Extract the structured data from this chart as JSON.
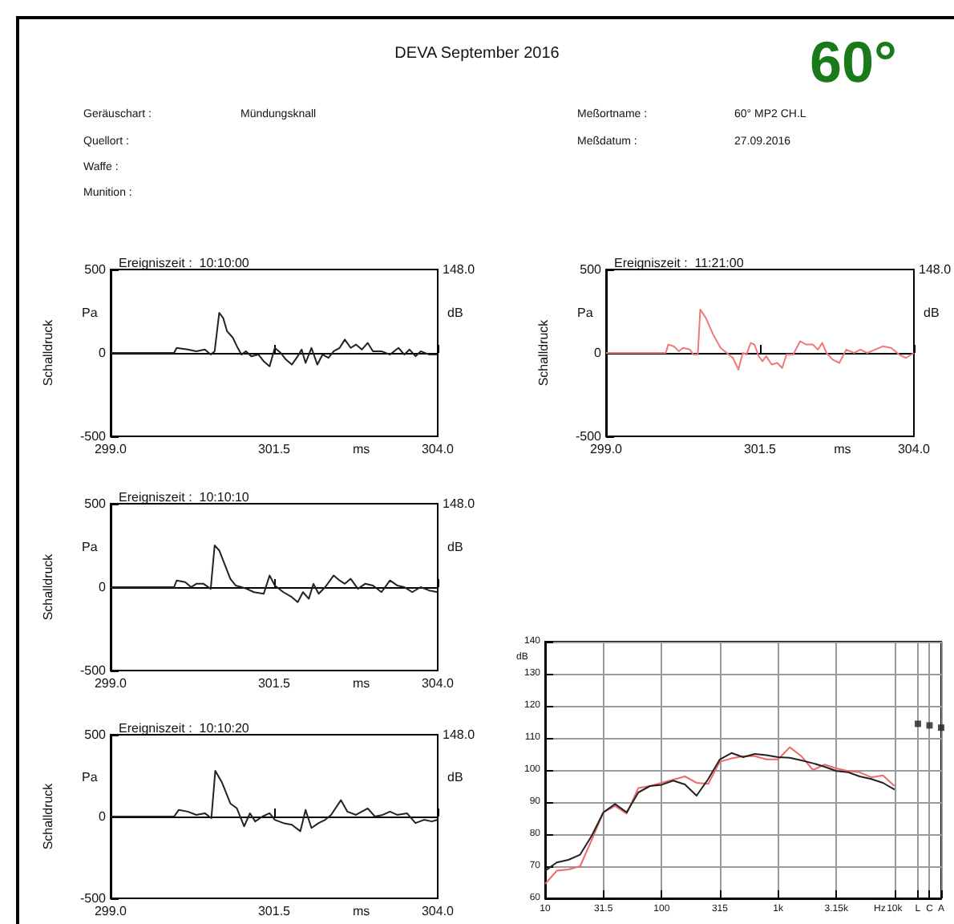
{
  "chart_data": [
    {
      "type": "other",
      "title": "DEVA September 2016",
      "annotations": [
        "60°",
        "Geräuschart :",
        "Mündungsknall",
        "Quellort :",
        "Waffe :",
        "Munition :",
        "Meßortname :",
        "60° MP2 CH.L",
        "Meßdatum :",
        "27.09.2016"
      ]
    },
    {
      "type": "line",
      "title": "Ereigniszeit :  10:10:00",
      "xlabel": "ms",
      "ylabel": "Schalldruck",
      "annotations": [
        "Pa",
        "dB",
        "148.0"
      ],
      "marker": "none",
      "x": [
        299.0,
        299.97,
        300.01,
        300.18,
        300.31,
        300.44,
        300.53,
        300.59,
        300.66,
        300.72,
        300.78,
        300.87,
        300.93,
        301.0,
        301.07,
        301.15,
        301.26,
        301.34,
        301.43,
        301.51,
        301.6,
        301.68,
        301.77,
        301.86,
        301.92,
        301.98,
        302.07,
        302.16,
        302.24,
        302.33,
        302.41,
        302.5,
        302.58,
        302.67,
        302.75,
        302.84,
        302.93,
        303.01,
        303.14,
        303.27,
        303.4,
        303.49,
        303.57,
        303.66,
        303.74,
        303.87,
        304.0
      ],
      "series": [
        {
          "color": "#222222",
          "values": [
            0,
            0,
            30,
            20,
            10,
            20,
            -10,
            10,
            240,
            210,
            130,
            90,
            40,
            -10,
            10,
            -20,
            -10,
            -50,
            -80,
            30,
            0,
            -40,
            -70,
            -20,
            20,
            -60,
            30,
            -70,
            -10,
            -30,
            10,
            30,
            80,
            30,
            50,
            20,
            60,
            10,
            10,
            -10,
            30,
            -10,
            20,
            -20,
            10,
            -10,
            -10
          ]
        }
      ],
      "xlim": [
        299,
        304
      ],
      "xticks": [
        {
          "value": 299,
          "label": "299.0"
        },
        {
          "value": 301.5,
          "label": "301.5"
        },
        {
          "value": 304,
          "label": "304.0"
        }
      ],
      "ylim": [
        -500,
        500
      ],
      "yticks": [
        -500,
        0,
        500
      ]
    },
    {
      "type": "line",
      "title": "Ereigniszeit :  11:21:00",
      "xlabel": "ms",
      "ylabel": "Schalldruck",
      "annotations": [
        "Pa",
        "dB",
        "148.0"
      ],
      "marker": "none",
      "x": [
        299.0,
        299.97,
        300.01,
        300.1,
        300.18,
        300.25,
        300.36,
        300.42,
        300.49,
        300.53,
        300.62,
        300.74,
        300.86,
        300.96,
        301.06,
        301.15,
        301.22,
        301.28,
        301.35,
        301.41,
        301.48,
        301.54,
        301.6,
        301.69,
        301.78,
        301.86,
        301.93,
        302.04,
        302.15,
        302.25,
        302.36,
        302.44,
        302.51,
        302.58,
        302.68,
        302.79,
        302.9,
        303.03,
        303.13,
        303.24,
        303.37,
        303.5,
        303.63,
        303.76,
        303.87,
        304.0
      ],
      "series": [
        {
          "color": "#f07878",
          "values": [
            0,
            0,
            50,
            40,
            10,
            30,
            20,
            -10,
            -10,
            260,
            210,
            110,
            30,
            0,
            -30,
            -100,
            0,
            -10,
            60,
            50,
            -20,
            -50,
            -20,
            -70,
            -60,
            -90,
            -10,
            -10,
            70,
            50,
            50,
            20,
            60,
            0,
            -40,
            -60,
            20,
            0,
            20,
            0,
            20,
            40,
            30,
            -10,
            -30,
            0
          ]
        }
      ],
      "xlim": [
        299,
        304
      ],
      "xticks": [
        {
          "value": 299,
          "label": "299.0"
        },
        {
          "value": 301.5,
          "label": "301.5"
        },
        {
          "value": 304,
          "label": "304.0"
        }
      ],
      "ylim": [
        -500,
        500
      ],
      "yticks": [
        -500,
        0,
        500
      ]
    },
    {
      "type": "line",
      "title": "Ereigniszeit :  10:10:10",
      "xlabel": "ms",
      "ylabel": "Schalldruck",
      "annotations": [
        "Pa",
        "dB",
        "148.0"
      ],
      "marker": "none",
      "x": [
        299.0,
        299.97,
        300.01,
        300.14,
        300.23,
        300.31,
        300.42,
        300.53,
        300.59,
        300.66,
        300.74,
        300.83,
        300.91,
        301.0,
        301.08,
        301.19,
        301.34,
        301.43,
        301.51,
        301.64,
        301.77,
        301.86,
        301.94,
        302.03,
        302.1,
        302.18,
        302.28,
        302.41,
        302.5,
        302.58,
        302.67,
        302.78,
        302.89,
        303.01,
        303.14,
        303.27,
        303.38,
        303.49,
        303.61,
        303.74,
        303.87,
        304.0
      ],
      "series": [
        {
          "color": "#222222",
          "values": [
            0,
            0,
            40,
            30,
            0,
            20,
            20,
            -10,
            250,
            220,
            140,
            50,
            10,
            0,
            -10,
            -30,
            -40,
            70,
            10,
            -30,
            -60,
            -90,
            -30,
            -70,
            20,
            -40,
            0,
            70,
            40,
            20,
            50,
            -10,
            20,
            10,
            -30,
            40,
            10,
            0,
            -30,
            0,
            -20,
            -30
          ]
        }
      ],
      "xlim": [
        299,
        304
      ],
      "xticks": [
        {
          "value": 299,
          "label": "299.0"
        },
        {
          "value": 301.5,
          "label": "301.5"
        },
        {
          "value": 304,
          "label": "304.0"
        }
      ],
      "ylim": [
        -500,
        500
      ],
      "yticks": [
        -500,
        0,
        500
      ]
    },
    {
      "type": "line",
      "title": "Ereigniszeit :  10:10:20",
      "xlabel": "ms",
      "ylabel": "Schalldruck",
      "annotations": [
        "Pa",
        "dB",
        "148.0"
      ],
      "marker": "none",
      "x": [
        299.0,
        299.97,
        300.04,
        300.18,
        300.31,
        300.44,
        300.54,
        300.6,
        300.7,
        300.83,
        300.93,
        301.04,
        301.13,
        301.21,
        301.32,
        301.43,
        301.51,
        301.64,
        301.77,
        301.9,
        301.98,
        302.07,
        302.18,
        302.28,
        302.37,
        302.52,
        302.62,
        302.75,
        302.93,
        303.04,
        303.16,
        303.27,
        303.38,
        303.53,
        303.66,
        303.79,
        303.91,
        304.0
      ],
      "series": [
        {
          "color": "#222222",
          "values": [
            0,
            0,
            40,
            30,
            10,
            20,
            -10,
            280,
            210,
            80,
            50,
            -60,
            20,
            -30,
            0,
            20,
            -20,
            -40,
            -50,
            -90,
            40,
            -70,
            -40,
            -20,
            10,
            100,
            30,
            10,
            50,
            0,
            10,
            30,
            10,
            20,
            -40,
            -20,
            -30,
            -20
          ]
        }
      ],
      "xlim": [
        299,
        304
      ],
      "xticks": [
        {
          "value": 299,
          "label": "299.0"
        },
        {
          "value": 301.5,
          "label": "301.5"
        },
        {
          "value": 304,
          "label": "304.0"
        }
      ],
      "ylim": [
        -500,
        500
      ],
      "yticks": [
        -500,
        0,
        500
      ]
    },
    {
      "type": "line",
      "xlabel": "Hz",
      "ylabel": "dB",
      "marker": "none",
      "grid": true,
      "categories": [
        "10",
        null,
        null,
        null,
        null,
        "31.5",
        null,
        null,
        null,
        null,
        "100",
        null,
        null,
        null,
        null,
        "315",
        null,
        null,
        null,
        null,
        "1k",
        null,
        null,
        null,
        null,
        "3.15k",
        null,
        null,
        null,
        null,
        "10k",
        null,
        "L",
        "C",
        "A"
      ],
      "series": [
        {
          "color": "#f06868",
          "values": [
            64.5,
            68.6,
            69,
            70,
            78.2,
            86.8,
            88.8,
            86.4,
            94.4,
            95,
            96,
            97,
            98,
            96,
            95.7,
            102.6,
            103.6,
            104.3,
            104.3,
            103.3,
            103.3,
            107.1,
            104.3,
            100,
            101.7,
            100.5,
            99.7,
            99.3,
            97.7,
            98.3,
            95,
            null,
            null,
            null,
            null
          ]
        },
        {
          "color": "#222222",
          "values": [
            68.6,
            71.2,
            72,
            73.6,
            79.5,
            86.8,
            89.4,
            86.8,
            93,
            95,
            95.4,
            96.7,
            95.5,
            92,
            97.2,
            103.3,
            105.3,
            104,
            105,
            104.6,
            104,
            103.8,
            103,
            102.1,
            101,
            99.7,
            99.3,
            98,
            97.2,
            96,
            93.9,
            null,
            null,
            null,
            null
          ]
        },
        {
          "type": "scatter",
          "marker": "square",
          "color": "#222222",
          "values": [
            null,
            null,
            null,
            null,
            null,
            null,
            null,
            null,
            null,
            null,
            null,
            null,
            null,
            null,
            null,
            null,
            null,
            null,
            null,
            null,
            null,
            null,
            null,
            null,
            null,
            null,
            null,
            null,
            null,
            null,
            null,
            null,
            114.4,
            113.9,
            113.2
          ]
        }
      ],
      "ylim": [
        60,
        140
      ],
      "yticks": [
        60,
        70,
        80,
        90,
        100,
        110,
        120,
        130,
        140
      ]
    }
  ]
}
